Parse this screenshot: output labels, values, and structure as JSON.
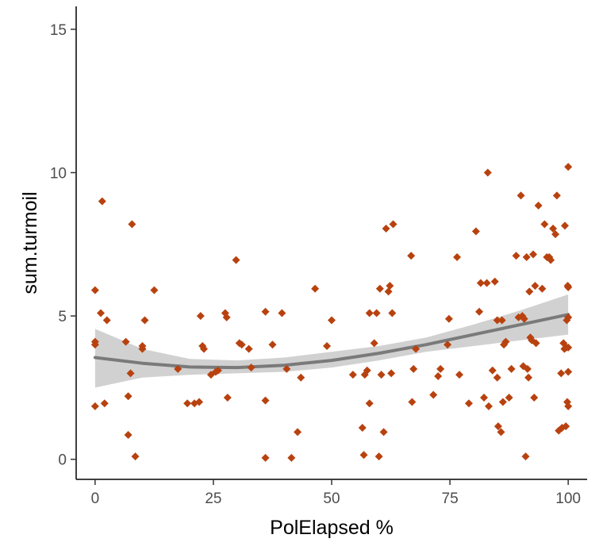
{
  "chart_data": {
    "type": "scatter",
    "title": "",
    "xlabel": "PolElapsed %",
    "ylabel": "sum.turmoil",
    "xlim": [
      -4,
      104
    ],
    "ylim": [
      -0.7,
      15.8
    ],
    "xticks": [
      0,
      25,
      50,
      75,
      100
    ],
    "xtick_labels": [
      "0",
      "25",
      "50",
      "75",
      "100"
    ],
    "yticks": [
      0,
      5,
      10,
      15
    ],
    "ytick_labels": [
      "0",
      "5",
      "10",
      "15"
    ],
    "grid": false,
    "legend": "none",
    "point_color": "#b8420f",
    "smooth_color": "#7a7a7a",
    "band_color": "#cccccc",
    "points": [
      [
        0,
        5.9
      ],
      [
        0,
        4.0
      ],
      [
        0,
        4.1
      ],
      [
        0,
        1.85
      ],
      [
        1.2,
        5.1
      ],
      [
        1.5,
        9.0
      ],
      [
        2,
        1.95
      ],
      [
        2.5,
        4.85
      ],
      [
        6.5,
        4.1
      ],
      [
        7,
        2.2
      ],
      [
        7,
        0.85
      ],
      [
        7.5,
        3.0
      ],
      [
        7.8,
        8.2
      ],
      [
        8.5,
        0.1
      ],
      [
        10,
        3.95
      ],
      [
        10,
        3.85
      ],
      [
        10.5,
        4.85
      ],
      [
        12.5,
        5.9
      ],
      [
        17.5,
        3.15
      ],
      [
        19.5,
        1.95
      ],
      [
        21,
        1.95
      ],
      [
        22,
        2.0
      ],
      [
        22.3,
        5.0
      ],
      [
        22.7,
        3.95
      ],
      [
        23,
        3.85
      ],
      [
        24.5,
        2.95
      ],
      [
        25.5,
        3.05
      ],
      [
        26,
        3.1
      ],
      [
        27.5,
        5.1
      ],
      [
        27.8,
        4.95
      ],
      [
        28,
        2.15
      ],
      [
        29.8,
        6.95
      ],
      [
        30.5,
        4.05
      ],
      [
        31,
        4.0
      ],
      [
        32.5,
        3.85
      ],
      [
        33,
        3.2
      ],
      [
        36,
        2.05
      ],
      [
        36,
        5.15
      ],
      [
        36,
        0.05
      ],
      [
        37.5,
        4.0
      ],
      [
        39.5,
        5.1
      ],
      [
        40.5,
        3.15
      ],
      [
        41.5,
        0.05
      ],
      [
        42.8,
        0.95
      ],
      [
        43.5,
        2.85
      ],
      [
        46.5,
        5.95
      ],
      [
        49,
        3.95
      ],
      [
        50,
        4.85
      ],
      [
        54.5,
        2.95
      ],
      [
        56.5,
        1.1
      ],
      [
        56.8,
        0.15
      ],
      [
        57,
        2.95
      ],
      [
        57.5,
        3.1
      ],
      [
        58,
        5.1
      ],
      [
        58,
        1.95
      ],
      [
        59,
        4.05
      ],
      [
        59.5,
        5.1
      ],
      [
        60,
        0.1
      ],
      [
        60.2,
        5.95
      ],
      [
        60.5,
        2.95
      ],
      [
        61,
        0.95
      ],
      [
        61.5,
        8.05
      ],
      [
        62,
        5.85
      ],
      [
        62.3,
        6.05
      ],
      [
        62.6,
        3.0
      ],
      [
        62.8,
        5.1
      ],
      [
        63,
        8.2
      ],
      [
        66.8,
        7.1
      ],
      [
        67,
        2.0
      ],
      [
        67.3,
        3.15
      ],
      [
        67.8,
        3.85
      ],
      [
        71.5,
        2.25
      ],
      [
        72.5,
        2.9
      ],
      [
        73,
        3.15
      ],
      [
        74.5,
        4.0
      ],
      [
        74.8,
        4.9
      ],
      [
        76.5,
        7.05
      ],
      [
        77,
        2.95
      ],
      [
        79,
        1.95
      ],
      [
        80.5,
        7.95
      ],
      [
        81.2,
        5.15
      ],
      [
        81.5,
        6.15
      ],
      [
        82.2,
        2.15
      ],
      [
        82.8,
        6.15
      ],
      [
        83,
        10.0
      ],
      [
        83.2,
        1.85
      ],
      [
        84,
        3.1
      ],
      [
        84.5,
        6.2
      ],
      [
        85,
        2.85
      ],
      [
        85,
        4.85
      ],
      [
        85.2,
        1.15
      ],
      [
        85.8,
        0.95
      ],
      [
        86,
        4.85
      ],
      [
        86.2,
        2.0
      ],
      [
        86.4,
        4.0
      ],
      [
        86.8,
        4.1
      ],
      [
        87.5,
        2.15
      ],
      [
        88,
        3.15
      ],
      [
        89,
        7.1
      ],
      [
        89.5,
        4.95
      ],
      [
        90,
        9.2
      ],
      [
        90.3,
        5.0
      ],
      [
        90.5,
        3.25
      ],
      [
        90.7,
        4.9
      ],
      [
        91,
        0.1
      ],
      [
        91.2,
        7.05
      ],
      [
        91.4,
        3.15
      ],
      [
        91.6,
        2.85
      ],
      [
        91.8,
        5.85
      ],
      [
        92,
        4.25
      ],
      [
        92.3,
        4.15
      ],
      [
        92.6,
        7.15
      ],
      [
        92.8,
        2.15
      ],
      [
        93,
        6.05
      ],
      [
        93.2,
        4.05
      ],
      [
        93.7,
        8.85
      ],
      [
        94.5,
        5.95
      ],
      [
        95,
        8.2
      ],
      [
        95.5,
        7.05
      ],
      [
        96,
        7.05
      ],
      [
        96.3,
        6.95
      ],
      [
        96.8,
        8.05
      ],
      [
        97.3,
        7.85
      ],
      [
        97.6,
        9.2
      ],
      [
        98,
        1.0
      ],
      [
        98.5,
        3.0
      ],
      [
        98.7,
        1.1
      ],
      [
        99,
        4.05
      ],
      [
        99.2,
        3.85
      ],
      [
        99.3,
        8.15
      ],
      [
        99.5,
        1.15
      ],
      [
        99.6,
        3.9
      ],
      [
        99.7,
        4.85
      ],
      [
        99.8,
        2.0
      ],
      [
        99.9,
        6.05
      ],
      [
        100,
        10.2
      ],
      [
        100,
        3.9
      ],
      [
        100,
        3.05
      ],
      [
        100,
        1.85
      ],
      [
        100,
        6.0
      ],
      [
        100,
        4.95
      ]
    ],
    "smooth_line": {
      "x": [
        0,
        10,
        20,
        30,
        40,
        50,
        60,
        70,
        80,
        90,
        100
      ],
      "y": [
        3.55,
        3.35,
        3.22,
        3.2,
        3.28,
        3.45,
        3.7,
        4.0,
        4.35,
        4.7,
        5.05
      ],
      "lower": [
        2.5,
        2.85,
        2.95,
        3.0,
        3.05,
        3.2,
        3.45,
        3.75,
        3.95,
        4.15,
        4.35
      ],
      "upper": [
        4.55,
        3.85,
        3.5,
        3.45,
        3.55,
        3.75,
        3.95,
        4.25,
        4.7,
        5.2,
        5.75
      ]
    }
  }
}
